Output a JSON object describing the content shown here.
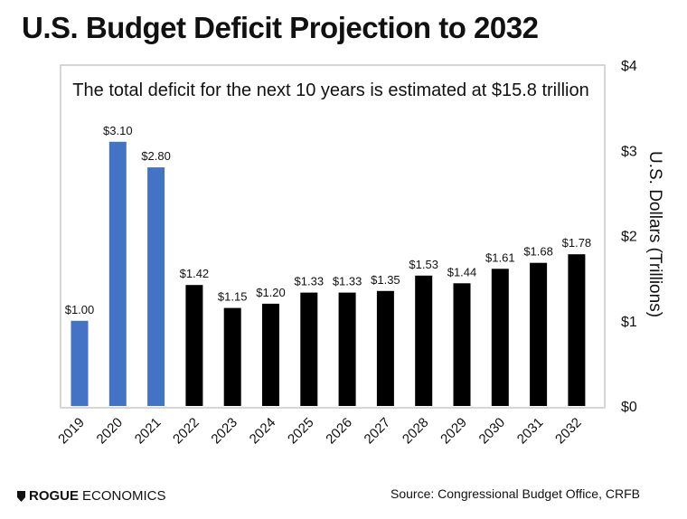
{
  "title": "U.S. Budget Deficit Projection to 2032",
  "brand": {
    "bold": "ROGUE",
    "rest": "ECONOMICS"
  },
  "source": "Source: Congressional Budget Office, CRFB",
  "colors": {
    "actual": "#4472C4",
    "projected": "#000000",
    "frame": "#c8c8c8",
    "text": "#111111"
  },
  "chart_data": {
    "type": "bar",
    "subtitle": "The total deficit for the next 10 years is estimated at $15.8 trillion",
    "ylabel": "U.S. Dollars (Trillions)",
    "ylim": [
      0,
      4
    ],
    "yticks": [
      "$0",
      "$1",
      "$2",
      "$3",
      "$4"
    ],
    "categories": [
      "2019",
      "2020",
      "2021",
      "2022",
      "2023",
      "2024",
      "2025",
      "2026",
      "2027",
      "2028",
      "2029",
      "2030",
      "2031",
      "2032"
    ],
    "values": [
      1.0,
      3.1,
      2.8,
      1.42,
      1.15,
      1.2,
      1.33,
      1.33,
      1.35,
      1.53,
      1.44,
      1.61,
      1.68,
      1.78
    ],
    "labels": [
      "$1.00",
      "$3.10",
      "$2.80",
      "$1.42",
      "$1.15",
      "$1.20",
      "$1.33",
      "$1.33",
      "$1.35",
      "$1.53",
      "$1.44",
      "$1.61",
      "$1.68",
      "$1.78"
    ],
    "series_kind": [
      "actual",
      "actual",
      "actual",
      "projected",
      "projected",
      "projected",
      "projected",
      "projected",
      "projected",
      "projected",
      "projected",
      "projected",
      "projected",
      "projected"
    ],
    "grid": false
  }
}
